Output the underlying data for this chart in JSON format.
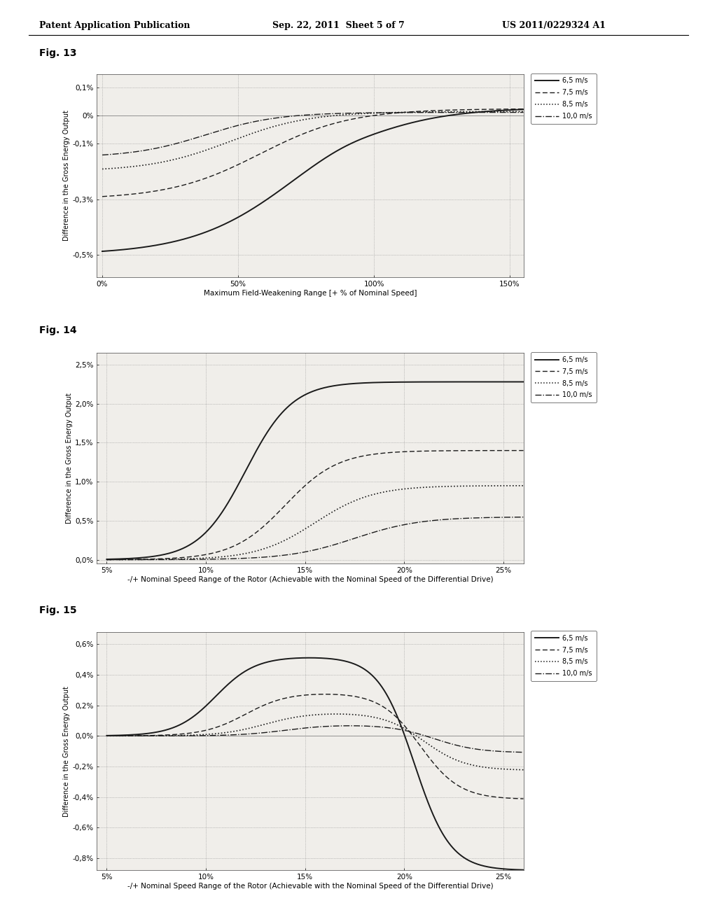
{
  "header_left": "Patent Application Publication",
  "header_mid": "Sep. 22, 2011  Sheet 5 of 7",
  "header_right": "US 2011/0229324 A1",
  "fig13": {
    "title": "Fig. 13",
    "xlabel": "Maximum Field-Weakening Range [+ % of Nominal Speed]",
    "ylabel": "Difference in the Gross Energy Output",
    "xticks": [
      0,
      50,
      100,
      150
    ],
    "xticklabels": [
      "0%",
      "50%",
      "100%",
      "150%"
    ],
    "yticks": [
      0.1,
      0.0,
      -0.1,
      -0.3,
      -0.5
    ],
    "yticklabels": [
      "0,1%",
      "0%",
      "-0,1%",
      "-0,3%",
      "-0,5%"
    ],
    "xlim": [
      -2,
      155
    ],
    "ylim": [
      -0.58,
      0.15
    ],
    "legend_labels": [
      "6,5 m/s",
      "7,5 m/s",
      "8,5 m/s",
      "10,0 m/s"
    ]
  },
  "fig14": {
    "title": "Fig. 14",
    "xlabel": "-/+ Nominal Speed Range of the Rotor (Achievable with the Nominal Speed of the Differential Drive)",
    "ylabel": "Difference in the Gross Energy Output",
    "xticks": [
      5,
      10,
      15,
      20,
      25
    ],
    "xticklabels": [
      "5%",
      "10%",
      "15%",
      "20%",
      "25%"
    ],
    "yticks": [
      0.0,
      0.5,
      1.0,
      1.5,
      2.0,
      2.5
    ],
    "yticklabels": [
      "0,0%",
      "0,5%",
      "1,0%",
      "1,5%",
      "2,0%",
      "2,5%"
    ],
    "xlim": [
      4.5,
      26
    ],
    "ylim": [
      -0.05,
      2.65
    ],
    "legend_labels": [
      "6,5 m/s",
      "7,5 m/s",
      "8,5 m/s",
      "10,0 m/s"
    ]
  },
  "fig15": {
    "title": "Fig. 15",
    "xlabel": "-/+ Nominal Speed Range of the Rotor (Achievable with the Nominal Speed of the Differential Drive)",
    "ylabel": "Difference in the Gross Energy Output",
    "xticks": [
      5,
      10,
      15,
      20,
      25
    ],
    "xticklabels": [
      "5%",
      "10%",
      "15%",
      "20%",
      "25%"
    ],
    "yticks": [
      -0.8,
      -0.6,
      -0.4,
      -0.2,
      0.0,
      0.2,
      0.4,
      0.6
    ],
    "yticklabels": [
      "-0,8%",
      "-0,6%",
      "-0,4%",
      "-0,2%",
      "0,0%",
      "0,2%",
      "0,4%",
      "0,6%"
    ],
    "xlim": [
      4.5,
      26
    ],
    "ylim": [
      -0.88,
      0.68
    ],
    "legend_labels": [
      "6,5 m/s",
      "7,5 m/s",
      "8,5 m/s",
      "10,0 m/s"
    ]
  },
  "bg_color": "#f0eeea",
  "plot_bg": "#e8e5e0",
  "line_color": "#222222",
  "grid_color": "#999999",
  "text_color": "#111111"
}
